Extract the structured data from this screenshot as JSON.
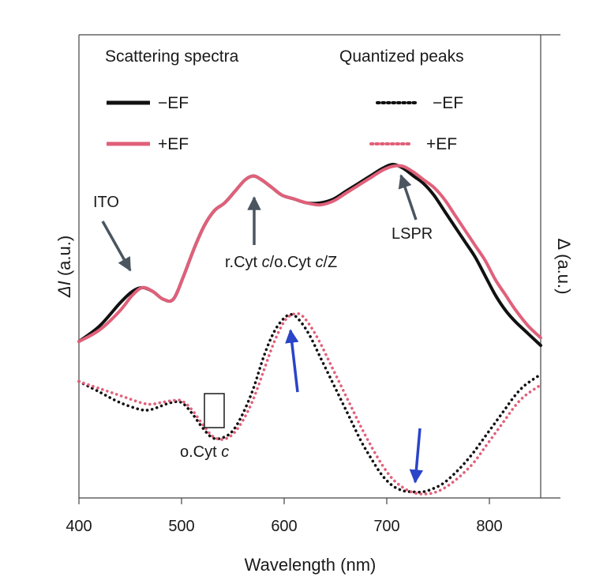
{
  "chart_data": {
    "type": "line",
    "xlabel": "Wavelength (nm)",
    "ylabel_left_symbol": "ΔI",
    "ylabel_left_unit": " (a.u.)",
    "ylabel_right": "Δ (a.u.)",
    "xlim": [
      400,
      850
    ],
    "ylim": [
      0,
      100
    ],
    "x_ticks": [
      400,
      500,
      600,
      700,
      800
    ],
    "legend": {
      "scattering_heading": "Scattering spectra",
      "quantized_heading": "Quantized peaks",
      "neg_label": "−EF",
      "pos_label": "+EF"
    },
    "colors": {
      "neg": "#111111",
      "pos": "#e0607a",
      "arrow_gray": "#4a5560",
      "arrow_blue": "#2a45c8"
    },
    "scattering": [
      {
        "name": "−EF",
        "x": [
          400,
          420,
          440,
          452,
          462,
          472,
          482,
          492,
          502,
          512,
          522,
          532,
          542,
          552,
          562,
          570,
          578,
          588,
          598,
          610,
          622,
          635,
          648,
          660,
          672,
          684,
          696,
          706,
          716,
          726,
          736,
          746,
          756,
          766,
          776,
          786,
          796,
          806,
          816,
          826,
          838,
          850
        ],
        "y": [
          36,
          40,
          46,
          49,
          50,
          49,
          47,
          47,
          53,
          60,
          66,
          70,
          72,
          75,
          78,
          79,
          78,
          76,
          74,
          73,
          72,
          72,
          73,
          75,
          77,
          79,
          81,
          82,
          81,
          79,
          77,
          74,
          70,
          66,
          62,
          58,
          53,
          48,
          44,
          41,
          38,
          35
        ]
      },
      {
        "name": "+EF",
        "x": [
          400,
          420,
          440,
          452,
          462,
          472,
          482,
          492,
          502,
          512,
          522,
          532,
          542,
          552,
          562,
          570,
          578,
          588,
          598,
          610,
          622,
          635,
          648,
          660,
          672,
          684,
          696,
          706,
          716,
          726,
          736,
          746,
          756,
          766,
          776,
          786,
          796,
          806,
          816,
          826,
          838,
          850
        ],
        "y": [
          36,
          39,
          44,
          48,
          50,
          49,
          47,
          47,
          53,
          60,
          66,
          70,
          72,
          75,
          78,
          79,
          78,
          76,
          74,
          73,
          72,
          71.5,
          72.5,
          74.5,
          76.5,
          78.5,
          80.5,
          81.5,
          81.5,
          80,
          78,
          76,
          73,
          69,
          65,
          61,
          57,
          52,
          48,
          44,
          40,
          37
        ]
      }
    ],
    "quantized": [
      {
        "name": "−EF",
        "x": [
          400,
          420,
          440,
          460,
          470,
          480,
          490,
          500,
          510,
          520,
          530,
          540,
          550,
          560,
          570,
          580,
          590,
          600,
          608,
          616,
          625,
          635,
          645,
          655,
          665,
          675,
          685,
          695,
          705,
          715,
          725,
          735,
          745,
          755,
          765,
          775,
          785,
          795,
          805,
          815,
          825,
          835,
          850
        ],
        "y": [
          32,
          29,
          26,
          24,
          24,
          25,
          26,
          26,
          23,
          19,
          16,
          16,
          18,
          23,
          30,
          39,
          46,
          50,
          51,
          49,
          45,
          39,
          33,
          27,
          21,
          15,
          10,
          5.5,
          2.5,
          1,
          0.6,
          0.6,
          1.5,
          3,
          5.5,
          8.5,
          12,
          16,
          20,
          24,
          28,
          31,
          34
        ]
      },
      {
        "name": "+EF",
        "x": [
          400,
          420,
          440,
          460,
          470,
          480,
          490,
          500,
          510,
          520,
          530,
          540,
          550,
          560,
          570,
          580,
          590,
          600,
          608,
          616,
          625,
          635,
          645,
          655,
          665,
          675,
          685,
          695,
          705,
          715,
          725,
          735,
          745,
          755,
          765,
          775,
          785,
          795,
          805,
          815,
          825,
          835,
          850
        ],
        "y": [
          32,
          30,
          28,
          26,
          25.5,
          26,
          26.5,
          26.5,
          24,
          20,
          16.5,
          15.5,
          17,
          21,
          27,
          35,
          43,
          49,
          51,
          51,
          48,
          43,
          37,
          31,
          25,
          19,
          13.5,
          8.5,
          4.5,
          2,
          0.5,
          0,
          0.3,
          1.5,
          3.5,
          6,
          9,
          13,
          17,
          21,
          25,
          28,
          31
        ]
      }
    ],
    "annotations": {
      "ito": "ITO",
      "rcyt_prefix": "r.Cyt ",
      "rcyt_mid": "c",
      "rcyt_join": "/o.Cyt ",
      "rcyt_mid2": "c",
      "rcyt_suffix": "/Z",
      "lspr": "LSPR",
      "ocyt_prefix": "o.Cyt ",
      "ocyt_italic": "c"
    }
  }
}
